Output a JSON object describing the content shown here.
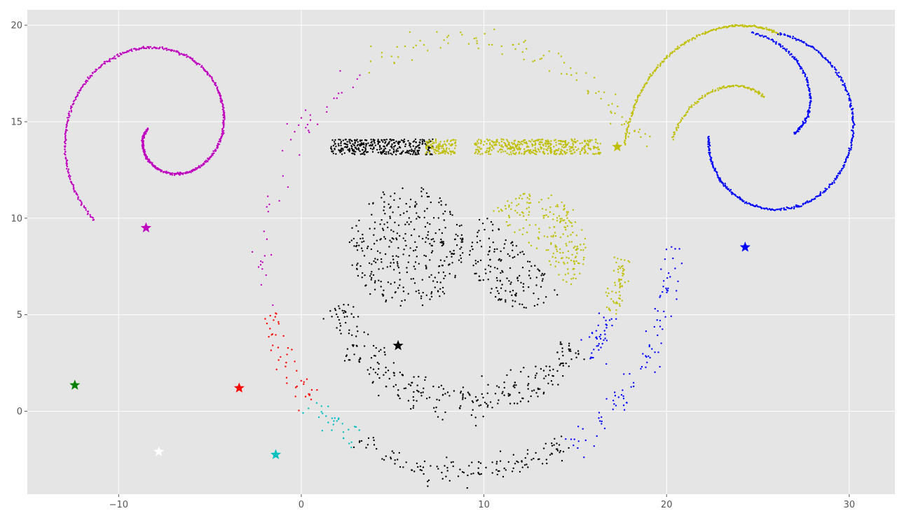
{
  "chart_data": {
    "type": "scatter",
    "title": "",
    "xlabel": "",
    "ylabel": "",
    "xlim": [
      -15,
      32.5
    ],
    "ylim": [
      -4.3,
      20.8
    ],
    "xticks": [
      -10,
      0,
      10,
      20,
      30
    ],
    "yticks": [
      0,
      5,
      10,
      15,
      20
    ],
    "xtick_labels": [
      "−10",
      "0",
      "10",
      "20",
      "30"
    ],
    "ytick_labels": [
      "0",
      "5",
      "10",
      "15",
      "20"
    ],
    "grid": true,
    "legend": "none",
    "style": {
      "background": "#e5e5e5",
      "grid_color": "#ffffff"
    },
    "clusters": [
      {
        "color": "#bf00bf",
        "centroid": [
          -8.5,
          9.5
        ]
      },
      {
        "color": "#bfbf00",
        "centroid": [
          17.3,
          13.7
        ]
      },
      {
        "color": "#0000ff",
        "centroid": [
          24.3,
          8.5
        ]
      },
      {
        "color": "#000000",
        "centroid": [
          5.3,
          3.4
        ]
      },
      {
        "color": "#ff0000",
        "centroid": [
          -3.4,
          1.2
        ]
      },
      {
        "color": "#008000",
        "centroid": [
          -12.4,
          1.35
        ]
      },
      {
        "color": "#00bfbf",
        "centroid": [
          -1.4,
          -2.25
        ]
      },
      {
        "color": "#ffffff",
        "centroid": [
          -7.8,
          -2.1
        ]
      }
    ],
    "point_groups": [
      {
        "shape": "spiral",
        "color": "#bf00bf",
        "center": [
          -7.5,
          14.5
        ],
        "r0": 0.9,
        "r1": 6.0,
        "t0": 3.0,
        "t1": 10.3,
        "n": 700,
        "noise": 0.03
      },
      {
        "shape": "spiral",
        "color": "#bfbf00",
        "center": [
          25.6,
          14.4
        ],
        "r0": 1.9,
        "r1": 5.3,
        "t0": 1.7,
        "t1": 3.2,
        "n": 120,
        "noise": 0.03
      },
      {
        "shape": "spiral",
        "color": "#bfbf00",
        "center": [
          25.6,
          14.4
        ],
        "r0": 5.2,
        "r1": 7.9,
        "t0": 7.75,
        "t1": 9.5,
        "n": 230,
        "noise": 0.03
      },
      {
        "shape": "spiral",
        "color": "#0000ff",
        "center": [
          25.6,
          14.4
        ],
        "r0": 1.4,
        "r1": 5.3,
        "t0": 0.0,
        "t1": 1.75,
        "n": 160,
        "noise": 0.03
      },
      {
        "shape": "spiral",
        "color": "#0000ff",
        "center": [
          25.6,
          14.4
        ],
        "r0": 3.3,
        "r1": 5.2,
        "t0": 3.2,
        "t1": 7.75,
        "n": 420,
        "noise": 0.03
      },
      {
        "shape": "arc",
        "color": "#bfbf00",
        "center": [
          9.0,
          8.0
        ],
        "r": 11.2,
        "a0": 30,
        "a1": 120,
        "n": 95,
        "noise": 0.35
      },
      {
        "shape": "arc",
        "color": "#bf00bf",
        "center": [
          9.0,
          8.0
        ],
        "r": 11.2,
        "a0": 120,
        "a1": 195,
        "n": 45,
        "noise": 0.35
      },
      {
        "shape": "arc",
        "color": "#ff0000",
        "center": [
          9.0,
          8.0
        ],
        "r": 11.2,
        "a0": 195,
        "a1": 222,
        "n": 45,
        "noise": 0.35
      },
      {
        "shape": "arc",
        "color": "#00bfbf",
        "center": [
          9.0,
          8.0
        ],
        "r": 11.2,
        "a0": 222,
        "a1": 238,
        "n": 30,
        "noise": 0.35
      },
      {
        "shape": "arc",
        "color": "#000000",
        "center": [
          9.0,
          8.0
        ],
        "r": 11.2,
        "a0": 238,
        "a1": 300,
        "n": 130,
        "noise": 0.35
      },
      {
        "shape": "arc",
        "color": "#0000ff",
        "center": [
          9.0,
          8.0
        ],
        "r": 11.2,
        "a0": 300,
        "a1": 363,
        "n": 95,
        "noise": 0.35
      },
      {
        "shape": "arc",
        "color": "#000000",
        "center": [
          9.0,
          8.0
        ],
        "r": 7.5,
        "a0": 200,
        "a1": 322,
        "n": 280,
        "noise": 0.45
      },
      {
        "shape": "arc",
        "color": "#0000ff",
        "center": [
          9.0,
          8.0
        ],
        "r": 8.5,
        "a0": 322,
        "a1": 340,
        "n": 40,
        "noise": 0.3
      },
      {
        "shape": "arc",
        "color": "#bfbf00",
        "center": [
          9.0,
          8.0
        ],
        "r": 8.5,
        "a0": 340,
        "a1": 360,
        "n": 60,
        "noise": 0.3
      },
      {
        "shape": "disk",
        "color": "#000000",
        "center": [
          5.8,
          8.5
        ],
        "r": 3.2,
        "n": 330
      },
      {
        "shape": "disk",
        "color": "#bfbf00",
        "center": [
          12.6,
          8.5
        ],
        "r": 3.0,
        "a0": -45,
        "a1": 140,
        "n": 200
      },
      {
        "shape": "disk",
        "color": "#000000",
        "center": [
          12.2,
          8.3
        ],
        "r": 3.0,
        "a0": 140,
        "a1": 315,
        "n": 150
      },
      {
        "shape": "rect",
        "color": "#000000",
        "x0": 1.6,
        "x1": 7.2,
        "y0": 13.3,
        "y1": 14.1,
        "n": 330
      },
      {
        "shape": "rect",
        "color": "#bfbf00",
        "x0": 6.8,
        "x1": 8.5,
        "y0": 13.3,
        "y1": 14.1,
        "n": 110
      },
      {
        "shape": "rect",
        "color": "#bfbf00",
        "x0": 9.5,
        "x1": 16.4,
        "y0": 13.3,
        "y1": 14.1,
        "n": 420
      }
    ]
  }
}
